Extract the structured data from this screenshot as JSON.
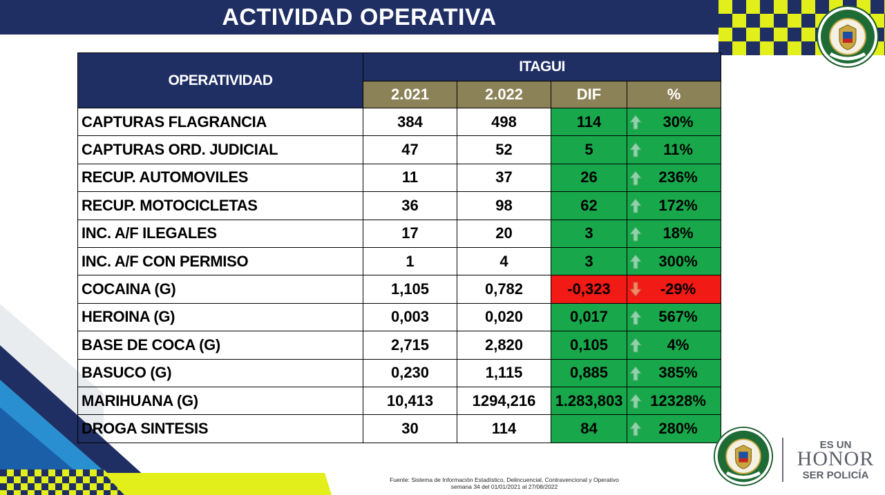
{
  "header": {
    "title": "ACTIVIDAD OPERATIVA"
  },
  "table": {
    "col_operatividad": "OPERATIVIDAD",
    "col_group": "ITAGUI",
    "col_2021": "2.021",
    "col_2022": "2.022",
    "col_dif": "DIF",
    "col_pct": "%",
    "rows": [
      {
        "label": "CAPTURAS FLAGRANCIA",
        "y2021": "384",
        "y2022": "498",
        "dif": "114",
        "pct": "30%",
        "trend": "up"
      },
      {
        "label": "CAPTURAS ORD. JUDICIAL",
        "y2021": "47",
        "y2022": "52",
        "dif": "5",
        "pct": "11%",
        "trend": "up"
      },
      {
        "label": "RECUP. AUTOMOVILES",
        "y2021": "11",
        "y2022": "37",
        "dif": "26",
        "pct": "236%",
        "trend": "up"
      },
      {
        "label": "RECUP. MOTOCICLETAS",
        "y2021": "36",
        "y2022": "98",
        "dif": "62",
        "pct": "172%",
        "trend": "up"
      },
      {
        "label": "INC. A/F ILEGALES",
        "y2021": "17",
        "y2022": "20",
        "dif": "3",
        "pct": "18%",
        "trend": "up"
      },
      {
        "label": "INC. A/F CON PERMISO",
        "y2021": "1",
        "y2022": "4",
        "dif": "3",
        "pct": "300%",
        "trend": "up"
      },
      {
        "label": "COCAINA (G)",
        "y2021": "1,105",
        "y2022": "0,782",
        "dif": "-0,323",
        "pct": "-29%",
        "trend": "down"
      },
      {
        "label": "HEROINA (G)",
        "y2021": "0,003",
        "y2022": "0,020",
        "dif": "0,017",
        "pct": "567%",
        "trend": "up"
      },
      {
        "label": "BASE DE COCA (G)",
        "y2021": "2,715",
        "y2022": "2,820",
        "dif": "0,105",
        "pct": "4%",
        "trend": "up"
      },
      {
        "label": "BASUCO (G)",
        "y2021": "0,230",
        "y2022": "1,115",
        "dif": "0,885",
        "pct": "385%",
        "trend": "up"
      },
      {
        "label": "MARIHUANA (G)",
        "y2021": "10,413",
        "y2022": "1294,216",
        "dif": "1.283,803",
        "pct": "12328%",
        "trend": "up"
      },
      {
        "label": "DROGA SINTESIS",
        "y2021": "30",
        "y2022": "114",
        "dif": "84",
        "pct": "280%",
        "trend": "up"
      }
    ]
  },
  "footer": {
    "source_line1": "Fuente: Sistema de Información Estadístico, Delincuencial, Contravencional y Operativo",
    "source_line2": "semana 34 del 01/01/2021 al 27/08/2022",
    "motto_top": "ES UN",
    "motto_mid": "HONOR",
    "motto_bottom": "SER POLICÍA"
  },
  "colors": {
    "navy": "#1f2f64",
    "gold": "#8c8258",
    "positive": "#18a84b",
    "negative": "#f21a14",
    "yellow": "#e2ef1a"
  },
  "icons": {
    "up": "arrow-up-icon",
    "down": "arrow-down-icon"
  }
}
